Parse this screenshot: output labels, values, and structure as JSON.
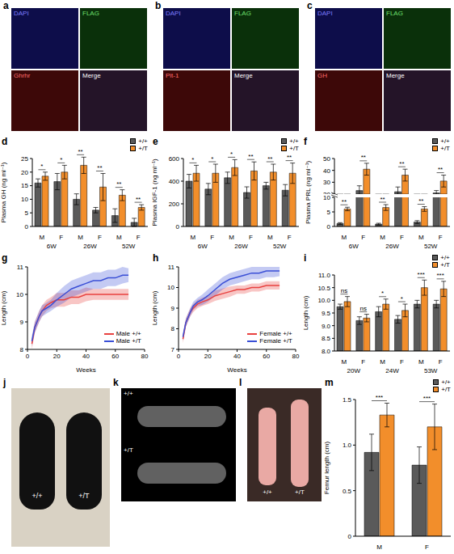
{
  "chart_data": [
    {
      "panel": "d",
      "type": "bar",
      "y_label": "Plasma GH (ng ml⁻¹)",
      "categories": [
        "M",
        "F",
        "M",
        "F",
        "M",
        "F"
      ],
      "groups": [
        "6W",
        "26W",
        "52W"
      ],
      "ylim": [
        0,
        25
      ],
      "yticks": [
        0,
        5,
        10,
        15,
        20,
        25
      ],
      "legend": "upper right",
      "series": [
        {
          "name": "+/+",
          "color": "#5a5a5a",
          "values": [
            16,
            16.5,
            10,
            6,
            4,
            1.5
          ],
          "errors": [
            1.5,
            3,
            2,
            1,
            2.5,
            1.5
          ]
        },
        {
          "name": "+/T",
          "color": "#f28e2b",
          "values": [
            18.5,
            20,
            22.5,
            14.5,
            11.5,
            7
          ],
          "errors": [
            1.5,
            2.5,
            3,
            5,
            2,
            1
          ]
        }
      ],
      "annotations": [
        "*",
        "*",
        "**",
        "**",
        "**",
        "**"
      ]
    },
    {
      "panel": "e",
      "type": "bar",
      "y_label": "Plasma IGF-1 (ng ml⁻¹)",
      "categories": [
        "M",
        "F",
        "M",
        "F",
        "M",
        "F"
      ],
      "groups": [
        "6W",
        "26W",
        "52W"
      ],
      "ylim": [
        0,
        600
      ],
      "yticks": [
        0,
        200,
        400,
        600
      ],
      "legend": "upper right",
      "series": [
        {
          "name": "+/+",
          "color": "#5a5a5a",
          "values": [
            400,
            330,
            430,
            300,
            360,
            320
          ],
          "errors": [
            60,
            50,
            50,
            50,
            30,
            50
          ]
        },
        {
          "name": "+/T",
          "color": "#f28e2b",
          "values": [
            470,
            470,
            520,
            490,
            480,
            470
          ],
          "errors": [
            70,
            80,
            70,
            80,
            70,
            90
          ]
        }
      ],
      "annotations": [
        "*",
        "*",
        "*",
        "**",
        "**",
        "**"
      ]
    },
    {
      "panel": "f",
      "type": "bar",
      "y_label": "Plasma PRL (ng ml⁻¹)",
      "categories": [
        "M",
        "F",
        "M",
        "F",
        "M",
        "F"
      ],
      "groups": [
        "6W",
        "26W",
        "52W"
      ],
      "y_segments": [
        {
          "ylim": [
            0,
            10
          ],
          "yticks": [
            0,
            5,
            10
          ]
        },
        {
          "ylim": [
            20,
            50
          ],
          "yticks": [
            20,
            30,
            40,
            50
          ]
        }
      ],
      "legend": "upper right",
      "series": [
        {
          "name": "+/+",
          "color": "#5a5a5a",
          "values": [
            1,
            23,
            0.8,
            22,
            1.5,
            21
          ],
          "errors": [
            0.3,
            4,
            0.3,
            4,
            0.5,
            2
          ]
        },
        {
          "name": "+/T",
          "color": "#f28e2b",
          "values": [
            6,
            41,
            6.5,
            36,
            6,
            31
          ],
          "errors": [
            0.6,
            5,
            1,
            5,
            0.8,
            5
          ]
        }
      ],
      "annotations": [
        "**",
        "**",
        "**",
        "**",
        "**",
        "**"
      ]
    },
    {
      "panel": "g",
      "type": "line",
      "x_label": "Weeks",
      "y_label": "Length (cm)",
      "x": [
        3,
        5,
        8,
        10,
        13,
        16,
        20,
        25,
        30,
        35,
        40,
        45,
        50,
        55,
        60,
        65,
        69
      ],
      "xlim": [
        0,
        80
      ],
      "xticks": [
        0,
        20,
        40,
        60,
        80
      ],
      "ylim": [
        8,
        11
      ],
      "yticks": [
        8,
        9,
        10,
        11
      ],
      "legend": "lower right",
      "series": [
        {
          "name": "Male +/+",
          "color": "#e8413f",
          "values": [
            8.2,
            8.8,
            9.2,
            9.4,
            9.6,
            9.7,
            9.8,
            9.8,
            9.9,
            9.9,
            10.0,
            10.0,
            10.0,
            10.0,
            10.0,
            10.0,
            10.0
          ],
          "errors": [
            0.2,
            0.2,
            0.2,
            0.2,
            0.2,
            0.2,
            0.25,
            0.25,
            0.25,
            0.25,
            0.25,
            0.2,
            0.2,
            0.2,
            0.2,
            0.2,
            0.2
          ]
        },
        {
          "name": "Male +/T",
          "color": "#3a4fd6",
          "values": [
            8.3,
            8.8,
            9.2,
            9.4,
            9.5,
            9.6,
            9.8,
            10.0,
            10.2,
            10.3,
            10.4,
            10.5,
            10.5,
            10.6,
            10.6,
            10.7,
            10.7
          ],
          "errors": [
            0.2,
            0.2,
            0.2,
            0.2,
            0.2,
            0.2,
            0.25,
            0.3,
            0.3,
            0.3,
            0.3,
            0.3,
            0.3,
            0.3,
            0.3,
            0.3,
            0.25
          ]
        }
      ]
    },
    {
      "panel": "h",
      "type": "line",
      "x_label": "Weeks",
      "y_label": "Length (cm)",
      "x": [
        3,
        5,
        8,
        10,
        13,
        16,
        20,
        25,
        30,
        35,
        40,
        45,
        50,
        55,
        60,
        65,
        69
      ],
      "xlim": [
        0,
        80
      ],
      "xticks": [
        0,
        20,
        40,
        60,
        80
      ],
      "ylim": [
        7,
        11
      ],
      "yticks": [
        7,
        8,
        9,
        10,
        11
      ],
      "legend": "lower right",
      "series": [
        {
          "name": "Female +/+",
          "color": "#e8413f",
          "values": [
            7.5,
            8.3,
            8.8,
            9.0,
            9.2,
            9.3,
            9.4,
            9.6,
            9.7,
            9.8,
            9.9,
            9.9,
            10.0,
            10.0,
            10.1,
            10.1,
            10.1
          ],
          "errors": [
            0.2,
            0.2,
            0.2,
            0.2,
            0.2,
            0.2,
            0.2,
            0.25,
            0.25,
            0.25,
            0.2,
            0.2,
            0.2,
            0.2,
            0.2,
            0.2,
            0.2
          ]
        },
        {
          "name": "Female +/T",
          "color": "#3a4fd6",
          "values": [
            7.6,
            8.3,
            8.8,
            9.1,
            9.3,
            9.4,
            9.6,
            9.9,
            10.2,
            10.4,
            10.5,
            10.6,
            10.7,
            10.7,
            10.8,
            10.8,
            10.8
          ],
          "errors": [
            0.2,
            0.2,
            0.2,
            0.2,
            0.2,
            0.25,
            0.3,
            0.3,
            0.3,
            0.3,
            0.3,
            0.3,
            0.3,
            0.3,
            0.3,
            0.3,
            0.25
          ]
        }
      ]
    },
    {
      "panel": "i",
      "type": "bar",
      "y_label": "Length (cm)",
      "categories": [
        "M",
        "F",
        "M",
        "F",
        "M",
        "F"
      ],
      "groups": [
        "20W",
        "24W",
        "53W"
      ],
      "ylim": [
        8,
        11
      ],
      "yticks": [
        {
          "value": 8,
          "label": "8.0"
        },
        8.5,
        {
          "value": 9,
          "label": "9.0"
        },
        9.5,
        {
          "value": 10,
          "label": "10.0"
        },
        10.5,
        {
          "value": 11,
          "label": "11.0"
        }
      ],
      "legend": "upper right",
      "series": [
        {
          "name": "+/+",
          "color": "#5a5a5a",
          "values": [
            9.75,
            9.2,
            9.55,
            9.25,
            9.85,
            9.85
          ],
          "errors": [
            0.1,
            0.15,
            0.2,
            0.15,
            0.15,
            0.15
          ]
        },
        {
          "name": "+/T",
          "color": "#f28e2b",
          "values": [
            9.95,
            9.3,
            9.85,
            9.6,
            10.5,
            10.45
          ],
          "errors": [
            0.2,
            0.15,
            0.2,
            0.25,
            0.3,
            0.3
          ]
        }
      ],
      "annotations": [
        "ns",
        "ns",
        "*",
        "*",
        "***",
        "***"
      ]
    },
    {
      "panel": "m",
      "type": "bar",
      "y_label": "Femur length (cm)",
      "categories": [
        "M",
        "F"
      ],
      "ylim": [
        0,
        1.5
      ],
      "yticks": [
        0,
        0.5,
        {
          "value": 1,
          "label": "1.0"
        },
        1.5
      ],
      "legend": "upper right",
      "series": [
        {
          "name": "+/+",
          "color": "#5a5a5a",
          "values": [
            0.92,
            0.78
          ],
          "errors": [
            0.2,
            0.2
          ]
        },
        {
          "name": "+/T",
          "color": "#f28e2b",
          "values": [
            1.33,
            1.2
          ],
          "errors": [
            0.13,
            0.25
          ]
        }
      ],
      "annotations": [
        "***",
        "***"
      ]
    }
  ],
  "images": [
    {
      "panel": "a",
      "labels": [
        "DAPI",
        "FLAG",
        "Ghrhr",
        "Merge"
      ]
    },
    {
      "panel": "b",
      "labels": [
        "DAPI",
        "FLAG",
        "Pit-1",
        "Merge"
      ]
    },
    {
      "panel": "c",
      "labels": [
        "DAPI",
        "FLAG",
        "GH",
        "Merge"
      ]
    },
    {
      "panel": "j",
      "labels": [
        "+/+",
        "+/T"
      ]
    },
    {
      "panel": "k",
      "labels": [
        "+/+",
        "+/T"
      ]
    },
    {
      "panel": "l",
      "labels": [
        "+/+",
        "+/T"
      ]
    }
  ]
}
